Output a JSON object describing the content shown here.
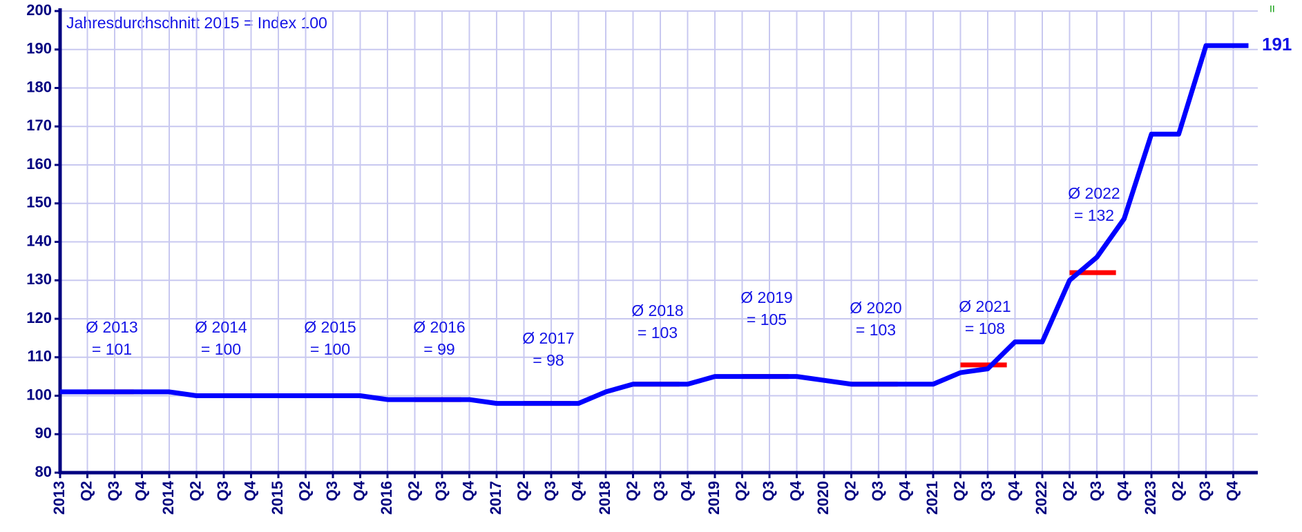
{
  "chart_data": {
    "type": "line",
    "subtitle": "Jahresdurchschnitt 2015 = Index 100",
    "corner_mark": "II",
    "categories": [
      "2013",
      "Q2",
      "Q3",
      "Q4",
      "2014",
      "Q2",
      "Q3",
      "Q4",
      "2015",
      "Q2",
      "Q3",
      "Q4",
      "2016",
      "Q2",
      "Q3",
      "Q4",
      "2017",
      "Q2",
      "Q3",
      "Q4",
      "2018",
      "Q2",
      "Q3",
      "Q4",
      "2019",
      "Q2",
      "Q3",
      "Q4",
      "2020",
      "Q2",
      "Q3",
      "Q4",
      "2021",
      "Q2",
      "Q3",
      "Q4",
      "2022",
      "Q2",
      "Q3",
      "Q4",
      "2023",
      "Q2",
      "Q3",
      "Q4"
    ],
    "series": [
      {
        "color": "#0000ff",
        "values": [
          101,
          101,
          101,
          101,
          101,
          100,
          100,
          100,
          100,
          100,
          100,
          100,
          99,
          99,
          99,
          99,
          98,
          98,
          98,
          98,
          101,
          103,
          103,
          103,
          105,
          105,
          105,
          105,
          104,
          103,
          103,
          103,
          103,
          106,
          107,
          114,
          114,
          130,
          136,
          146,
          168,
          168,
          191,
          191
        ]
      }
    ],
    "end_label": "191",
    "averages": {
      "color": "#ff0000",
      "items": [
        {
          "label": "Ø 2013",
          "text": "= 101",
          "value": 101
        },
        {
          "label": "Ø 2014",
          "text": "= 100",
          "value": 100
        },
        {
          "label": "Ø 2015",
          "text": "= 100",
          "value": 100
        },
        {
          "label": "Ø 2016",
          "text": "= 99",
          "value": 99
        },
        {
          "label": "Ø 2017",
          "text": "= 98",
          "value": 98
        },
        {
          "label": "Ø 2018",
          "text": "= 103",
          "value": 103
        },
        {
          "label": "Ø 2019",
          "text": "= 105",
          "value": 105
        },
        {
          "label": "Ø 2020",
          "text": "= 103",
          "value": 103
        },
        {
          "label": "Ø 2021",
          "text": "= 108",
          "value": 108
        },
        {
          "label": "Ø 2022",
          "text": "= 132",
          "value": 132
        }
      ]
    },
    "ylim": [
      80,
      200
    ],
    "yticks": [
      80,
      90,
      100,
      110,
      120,
      130,
      140,
      150,
      160,
      170,
      180,
      190,
      200
    ],
    "grid": true
  }
}
